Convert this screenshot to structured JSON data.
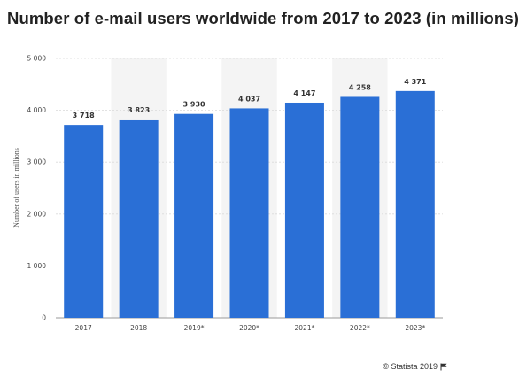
{
  "title": "Number of e-mail users worldwide from 2017 to 2023 (in millions)",
  "credit": {
    "text": "© Statista 2019",
    "icon": "flag-icon"
  },
  "chart_data": {
    "type": "bar",
    "title": "Number of e-mail users worldwide from 2017 to 2023 (in millions)",
    "ylabel": "Number of users in millions",
    "xlabel": "",
    "categories": [
      "2017",
      "2018",
      "2019*",
      "2020*",
      "2021*",
      "2022*",
      "2023*"
    ],
    "values": [
      3718,
      3823,
      3930,
      4037,
      4147,
      4258,
      4371
    ],
    "value_labels": [
      "3 718",
      "3 823",
      "3 930",
      "4 037",
      "4 147",
      "4 258",
      "4 371"
    ],
    "ylim": [
      0,
      5000
    ],
    "yticks": [
      0,
      1000,
      2000,
      3000,
      4000,
      5000
    ],
    "ytick_labels": [
      "0",
      "1 000",
      "2 000",
      "3 000",
      "4 000",
      "5 000"
    ],
    "grid": true,
    "legend": "none",
    "bar_color": "#2a6fd6",
    "alt_band_color": "#f4f4f4",
    "grid_color": "#d9d9d9"
  }
}
